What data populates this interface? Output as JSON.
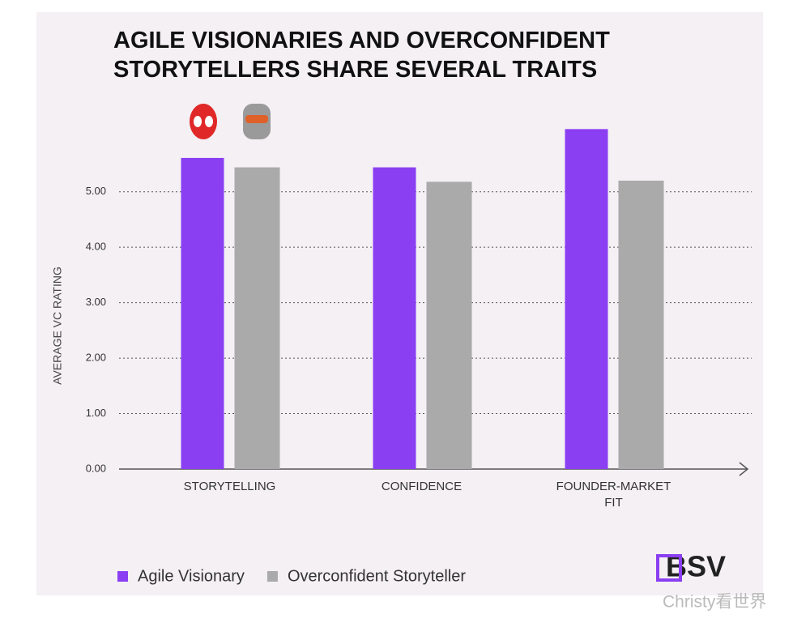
{
  "chart_data": {
    "type": "bar",
    "title": "AGILE VISIONARIES AND OVERCONFIDENT STORYTELLERS SHARE SEVERAL TRAITS",
    "y_label": "AVERAGE VC RATING",
    "categories": [
      "STORYTELLING",
      "CONFIDENCE",
      "FOUNDER-MARKET FIT"
    ],
    "series": [
      {
        "name": "Agile Visionary",
        "color": "#8b3ff2",
        "values": [
          5.61,
          5.44,
          6.13
        ]
      },
      {
        "name": "Overconfident Storyteller",
        "color": "#aaaaaa",
        "values": [
          5.44,
          5.18,
          5.2
        ]
      }
    ],
    "ylim": [
      0,
      6.5
    ],
    "yticks": [
      {
        "value": 0,
        "label": "0.00"
      },
      {
        "value": 1,
        "label": "1.00"
      },
      {
        "value": 2,
        "label": "2.00"
      },
      {
        "value": 3,
        "label": "3.00"
      },
      {
        "value": 4,
        "label": "4.00"
      },
      {
        "value": 5,
        "label": "5.00"
      }
    ],
    "grid": true,
    "legend": "bottom-left",
    "logo": "BSV",
    "watermark": "Christy看世界"
  }
}
